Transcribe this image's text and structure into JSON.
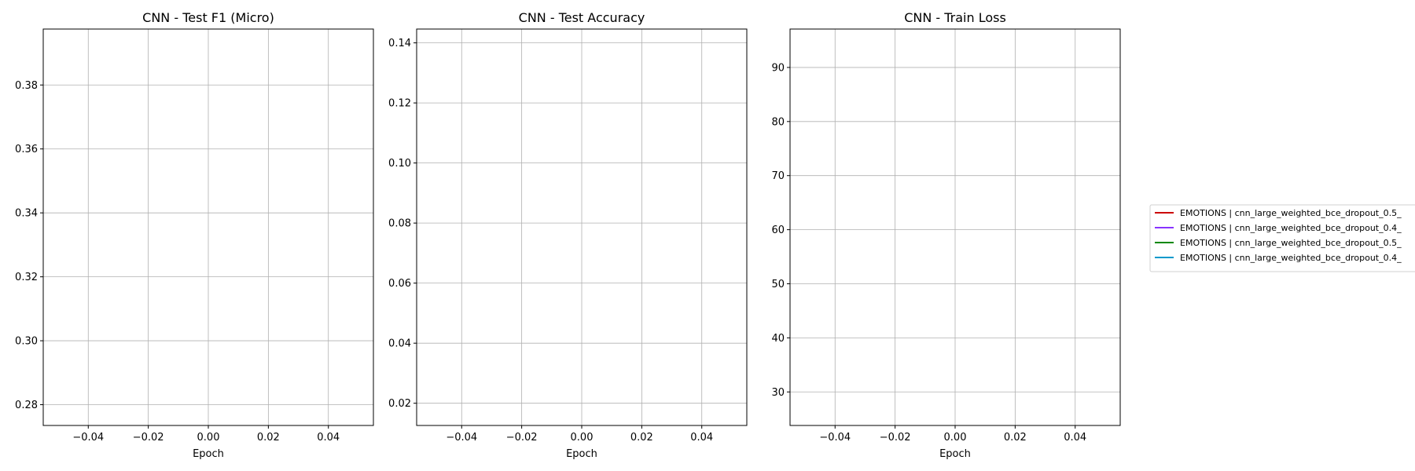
{
  "chart_data": [
    {
      "type": "line",
      "title": "CNN - Test F1 (Micro)",
      "xlabel": "Epoch",
      "ylabel": "",
      "xlim": [
        -0.055,
        0.055
      ],
      "ylim": [
        0.2735,
        0.3975
      ],
      "xticks": [
        -0.04,
        -0.02,
        0.0,
        0.02,
        0.04
      ],
      "xtick_labels": [
        "−0.04",
        "−0.02",
        "0.00",
        "0.02",
        "0.04"
      ],
      "yticks": [
        0.28,
        0.3,
        0.32,
        0.34,
        0.36,
        0.38
      ],
      "ytick_labels": [
        "0.28",
        "0.30",
        "0.32",
        "0.34",
        "0.36",
        "0.38"
      ],
      "grid": true,
      "series": []
    },
    {
      "type": "line",
      "title": "CNN - Test Accuracy",
      "xlabel": "Epoch",
      "ylabel": "",
      "xlim": [
        -0.055,
        0.055
      ],
      "ylim": [
        0.0126,
        0.1446
      ],
      "xticks": [
        -0.04,
        -0.02,
        0.0,
        0.02,
        0.04
      ],
      "xtick_labels": [
        "−0.04",
        "−0.02",
        "0.00",
        "0.02",
        "0.04"
      ],
      "yticks": [
        0.02,
        0.04,
        0.06,
        0.08,
        0.1,
        0.12,
        0.14
      ],
      "ytick_labels": [
        "0.02",
        "0.04",
        "0.06",
        "0.08",
        "0.10",
        "0.12",
        "0.14"
      ],
      "grid": true,
      "series": []
    },
    {
      "type": "line",
      "title": "CNN - Train Loss",
      "xlabel": "Epoch",
      "ylabel": "",
      "xlim": [
        -0.055,
        0.055
      ],
      "ylim": [
        23.8,
        97.1
      ],
      "xticks": [
        -0.04,
        -0.02,
        0.0,
        0.02,
        0.04
      ],
      "xtick_labels": [
        "−0.04",
        "−0.02",
        "0.00",
        "0.02",
        "0.04"
      ],
      "yticks": [
        30,
        40,
        50,
        60,
        70,
        80,
        90
      ],
      "ytick_labels": [
        "30",
        "40",
        "50",
        "60",
        "70",
        "80",
        "90"
      ],
      "grid": true,
      "series": []
    }
  ],
  "legend": {
    "placement": "right",
    "entries": [
      {
        "label": "EMOTIONS | cnn_large_weighted_bce_dropout_0.5_",
        "color": "#cc0000"
      },
      {
        "label": "EMOTIONS | cnn_large_weighted_bce_dropout_0.4_",
        "color": "#8833ff"
      },
      {
        "label": "EMOTIONS | cnn_large_weighted_bce_dropout_0.5_",
        "color": "#008800"
      },
      {
        "label": "EMOTIONS | cnn_large_weighted_bce_dropout_0.4_",
        "color": "#0099cc"
      }
    ]
  }
}
